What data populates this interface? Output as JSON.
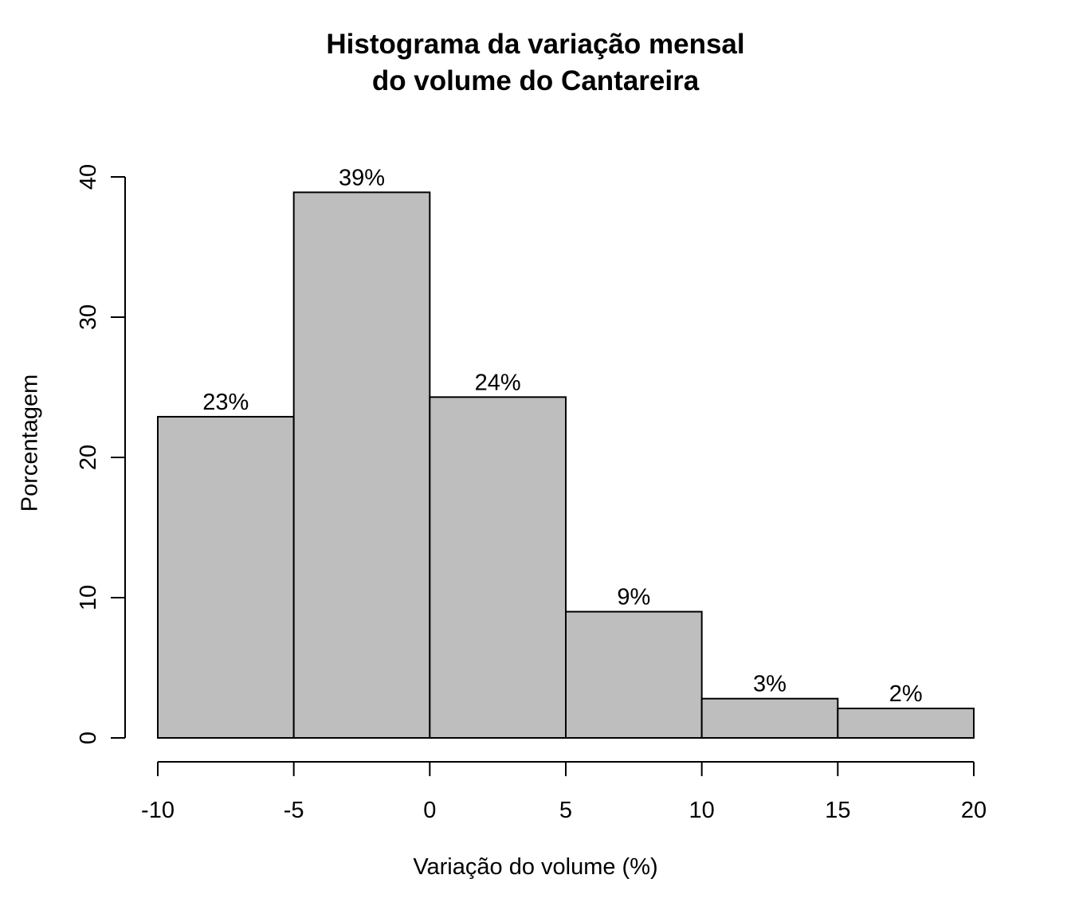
{
  "chart_data": {
    "type": "bar",
    "title_lines": [
      "Histograma da variação mensal",
      "do volume do Cantareira"
    ],
    "xlabel": "Variação do volume (%)",
    "ylabel": "Porcentagem",
    "bins": [
      {
        "start": -10,
        "end": -5,
        "value": 22.9,
        "label": "23%"
      },
      {
        "start": -5,
        "end": 0,
        "value": 38.9,
        "label": "39%"
      },
      {
        "start": 0,
        "end": 5,
        "value": 24.3,
        "label": "24%"
      },
      {
        "start": 5,
        "end": 10,
        "value": 9.0,
        "label": "9%"
      },
      {
        "start": 10,
        "end": 15,
        "value": 2.8,
        "label": "3%"
      },
      {
        "start": 15,
        "end": 20,
        "value": 2.1,
        "label": "2%"
      }
    ],
    "xticks": [
      -10,
      -5,
      0,
      5,
      10,
      15,
      20
    ],
    "yticks": [
      0,
      10,
      20,
      30,
      40
    ],
    "xlim": [
      -10,
      20
    ],
    "ylim": [
      0,
      40
    ],
    "bar_color": "#bebebe",
    "grid": false,
    "legend": "none"
  }
}
